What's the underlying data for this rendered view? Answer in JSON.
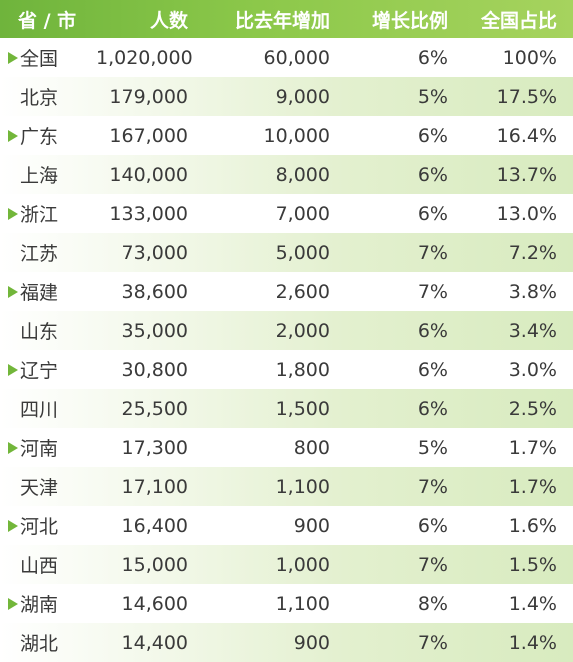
{
  "headers": {
    "name": "省 / 市",
    "people": "人数",
    "increase": "比去年增加",
    "growth": "增长比例",
    "share": "全国占比"
  },
  "rows": [
    {
      "name": "全国",
      "people": "1,020,000",
      "increase": "60,000",
      "growth": "6%",
      "share": "100%",
      "marker": true
    },
    {
      "name": "北京",
      "people": "179,000",
      "increase": "9,000",
      "growth": "5%",
      "share": "17.5%",
      "marker": false
    },
    {
      "name": "广东",
      "people": "167,000",
      "increase": "10,000",
      "growth": "6%",
      "share": "16.4%",
      "marker": true
    },
    {
      "name": "上海",
      "people": "140,000",
      "increase": "8,000",
      "growth": "6%",
      "share": "13.7%",
      "marker": false
    },
    {
      "name": "浙江",
      "people": "133,000",
      "increase": "7,000",
      "growth": "6%",
      "share": "13.0%",
      "marker": true
    },
    {
      "name": "江苏",
      "people": "73,000",
      "increase": "5,000",
      "growth": "7%",
      "share": "7.2%",
      "marker": false
    },
    {
      "name": "福建",
      "people": "38,600",
      "increase": "2,600",
      "growth": "7%",
      "share": "3.8%",
      "marker": true
    },
    {
      "name": "山东",
      "people": "35,000",
      "increase": "2,000",
      "growth": "6%",
      "share": "3.4%",
      "marker": false
    },
    {
      "name": "辽宁",
      "people": "30,800",
      "increase": "1,800",
      "growth": "6%",
      "share": "3.0%",
      "marker": true
    },
    {
      "name": "四川",
      "people": "25,500",
      "increase": "1,500",
      "growth": "6%",
      "share": "2.5%",
      "marker": false
    },
    {
      "name": "河南",
      "people": "17,300",
      "increase": "800",
      "growth": "5%",
      "share": "1.7%",
      "marker": true
    },
    {
      "name": "天津",
      "people": "17,100",
      "increase": "1,100",
      "growth": "7%",
      "share": "1.7%",
      "marker": false
    },
    {
      "name": "河北",
      "people": "16,400",
      "increase": "900",
      "growth": "6%",
      "share": "1.6%",
      "marker": true
    },
    {
      "name": "山西",
      "people": "15,000",
      "increase": "1,000",
      "growth": "7%",
      "share": "1.5%",
      "marker": false
    },
    {
      "name": "湖南",
      "people": "14,600",
      "increase": "1,100",
      "growth": "8%",
      "share": "1.4%",
      "marker": true
    },
    {
      "name": "湖北",
      "people": "14,400",
      "increase": "900",
      "growth": "7%",
      "share": "1.4%",
      "marker": false
    }
  ],
  "colors": {
    "header_bg": "#8cc84a",
    "header_text": "#ffffff",
    "arrow": "#72b63a",
    "alt_row": "#e3f0cf"
  },
  "icons": {
    "row_marker": "triangle-right-icon"
  }
}
